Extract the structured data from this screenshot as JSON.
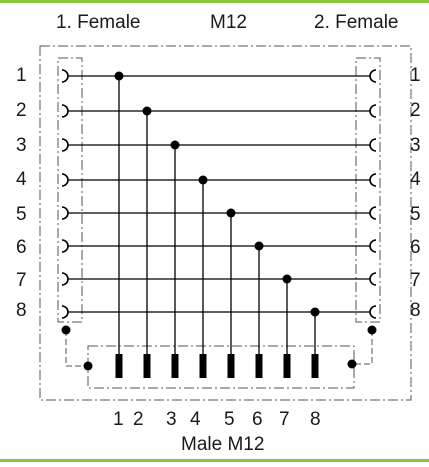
{
  "header": {
    "left_connector": "1. Female",
    "center_title": "M12",
    "right_connector": "2. Female"
  },
  "left_pins": [
    "1",
    "2",
    "3",
    "4",
    "5",
    "6",
    "7",
    "8"
  ],
  "right_pins": [
    "1",
    "2",
    "3",
    "4",
    "5",
    "6",
    "7",
    "8"
  ],
  "bottom_pins": [
    "1",
    "2",
    "3",
    "4",
    "5",
    "6",
    "7",
    "8"
  ],
  "footer": {
    "male_connector": "Male M12"
  },
  "colors": {
    "accent_border": "#8cc63f",
    "line": "#000000",
    "dash": "#555555"
  }
}
